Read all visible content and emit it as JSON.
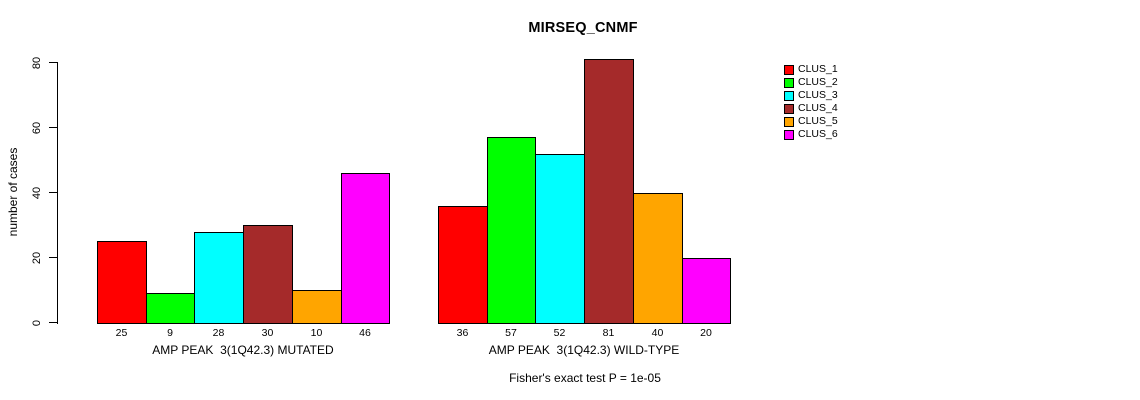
{
  "title": "MIRSEQ_CNMF",
  "chart_data": {
    "type": "bar",
    "title": "MIRSEQ_CNMF",
    "ylabel": "number of cases",
    "xlabel": "",
    "ylim": [
      0,
      80
    ],
    "yticks": [
      0,
      20,
      40,
      60,
      80
    ],
    "grid": false,
    "legend_position": "right",
    "series_names": [
      "CLUS_1",
      "CLUS_2",
      "CLUS_3",
      "CLUS_4",
      "CLUS_5",
      "CLUS_6"
    ],
    "colors": [
      "#FF0000",
      "#00FF00",
      "#00FFFF",
      "#A52A2A",
      "#FFA500",
      "#FF00FF"
    ],
    "axis_color": "#000000",
    "bar_border_color": "#000000",
    "groups": [
      {
        "label": "AMP PEAK  3(1Q42.3) MUTATED",
        "values": [
          25,
          9,
          28,
          30,
          10,
          46
        ],
        "bar_value_labels": [
          "25",
          "9",
          "28",
          "30",
          "10",
          "46"
        ]
      },
      {
        "label": "AMP PEAK  3(1Q42.3) WILD-TYPE",
        "values": [
          36,
          57,
          52,
          81,
          40,
          20
        ],
        "bar_value_labels": [
          "36",
          "57",
          "52",
          "81",
          "40",
          "20"
        ]
      }
    ],
    "footnote": "Fisher's exact test P = 1e-05"
  }
}
